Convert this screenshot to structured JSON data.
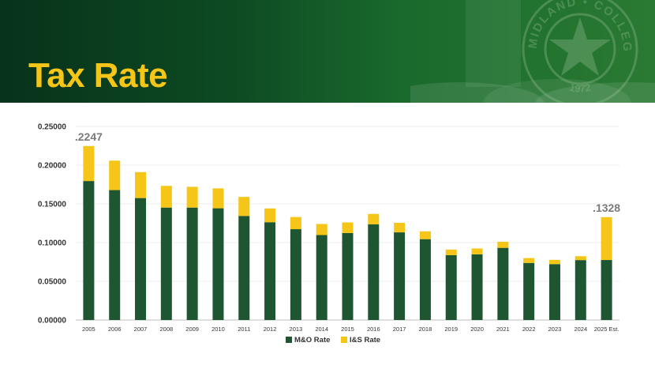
{
  "header": {
    "title": "Tax Rate",
    "seal_text_top": "MIDLAND • COLLEGE",
    "seal_text_bottom": "1972"
  },
  "colors": {
    "header_dark": "#07321b",
    "header_light": "#2a7a33",
    "title": "#f5c518",
    "mo_series": "#1e5631",
    "is_series": "#f5c518"
  },
  "chart_data": {
    "type": "bar",
    "stacked": true,
    "categories": [
      "2005",
      "2006",
      "2007",
      "2008",
      "2009",
      "2010",
      "2011",
      "2012",
      "2013",
      "2014",
      "2015",
      "2016",
      "2017",
      "2018",
      "2019",
      "2020",
      "2021",
      "2022",
      "2023",
      "2024",
      "2025 Est."
    ],
    "series": [
      {
        "name": "M&O Rate",
        "color": "#1e5631",
        "values": [
          0.1795,
          0.1678,
          0.1575,
          0.1452,
          0.1452,
          0.1443,
          0.1344,
          0.1263,
          0.1173,
          0.1097,
          0.1123,
          0.1236,
          0.1132,
          0.1044,
          0.0837,
          0.0848,
          0.0932,
          0.0737,
          0.0722,
          0.0774,
          0.0775
        ]
      },
      {
        "name": "I&S Rate",
        "color": "#f5c518",
        "values": [
          0.0452,
          0.038,
          0.0335,
          0.028,
          0.0268,
          0.0257,
          0.0246,
          0.0178,
          0.0157,
          0.0143,
          0.0137,
          0.0134,
          0.0123,
          0.0101,
          0.0073,
          0.0076,
          0.0078,
          0.0063,
          0.0055,
          0.005,
          0.0553
        ]
      }
    ],
    "y_ticks": [
      "0.00000",
      "0.05000",
      "0.10000",
      "0.15000",
      "0.20000",
      "0.25000"
    ],
    "ylim": [
      0,
      0.25
    ],
    "grid": true,
    "legend_position": "bottom",
    "annotations": [
      {
        "category": "2005",
        "text": ".2247"
      },
      {
        "category": "2025 Est.",
        "text": ".1328"
      }
    ],
    "title": "",
    "xlabel": "",
    "ylabel": ""
  }
}
